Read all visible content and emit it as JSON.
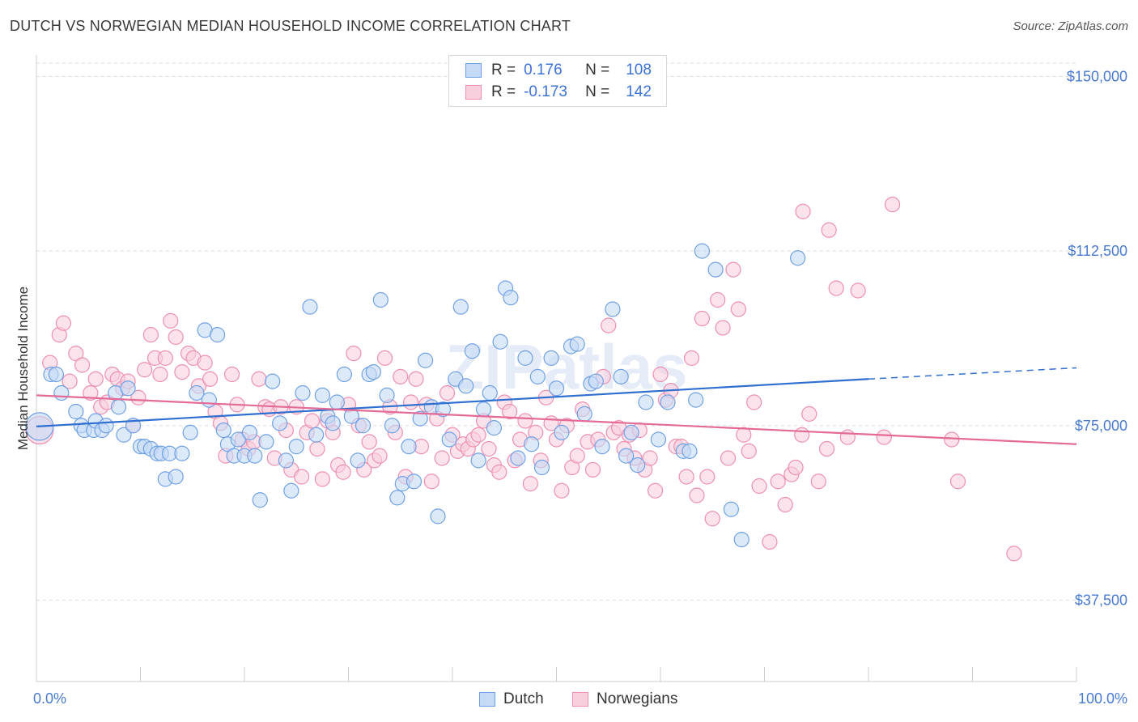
{
  "title": "DUTCH VS NORWEGIAN MEDIAN HOUSEHOLD INCOME CORRELATION CHART",
  "source": "Source: ZipAtlas.com",
  "watermark": "ZIPatlas",
  "colors": {
    "dutch": "#6fa0e6",
    "dutch_fill": "#c5daf5",
    "dutch_line": "#2f6fd0",
    "norwegian": "#ee8fb0",
    "norwegian_fill": "#f8cfdd",
    "norwegian_line": "#e36b96",
    "tick_label": "#4a7bd0",
    "grid": "#dddddd"
  },
  "legend": {
    "rows": [
      {
        "r_label": "R =",
        "r_value": "0.176",
        "n_label": "N =",
        "n_value": "108"
      },
      {
        "r_label": "R =",
        "r_value": "-0.173",
        "n_label": "N =",
        "n_value": "142"
      }
    ]
  },
  "bottom_legend": [
    "Dutch",
    "Norwegians"
  ],
  "chart_data": {
    "type": "scatter",
    "xlabel": "",
    "ylabel": "Median Household Income",
    "xlim": [
      0,
      100
    ],
    "ylim": [
      20000,
      156000
    ],
    "x_tick_labels": [
      "0.0%",
      "100.0%"
    ],
    "y_ticks": [
      37500,
      75000,
      112500,
      150000
    ],
    "y_tick_labels": [
      "$37,500",
      "$75,000",
      "$112,500",
      "$150,000"
    ],
    "grid": true,
    "legend_position": "top-center",
    "series": [
      {
        "name": "Dutch",
        "trend": {
          "x": [
            0,
            80,
            100
          ],
          "y": [
            74800,
            85000,
            87400
          ],
          "dashed_from": 80
        },
        "points": [
          [
            0.3,
            74800
          ],
          [
            1.4,
            86000
          ],
          [
            1.9,
            86000
          ],
          [
            2.4,
            82000
          ],
          [
            3.8,
            78000
          ],
          [
            4.3,
            75000
          ],
          [
            4.6,
            74000
          ],
          [
            5.5,
            74000
          ],
          [
            5.7,
            76000
          ],
          [
            6.3,
            74000
          ],
          [
            6.7,
            75000
          ],
          [
            7.6,
            82000
          ],
          [
            7.9,
            79000
          ],
          [
            8.4,
            73000
          ],
          [
            8.8,
            83000
          ],
          [
            9.3,
            75000
          ],
          [
            10.0,
            70500
          ],
          [
            10.4,
            70500
          ],
          [
            11.0,
            70000
          ],
          [
            11.6,
            69000
          ],
          [
            12.0,
            69000
          ],
          [
            12.4,
            63500
          ],
          [
            12.8,
            69000
          ],
          [
            13.4,
            64000
          ],
          [
            14.0,
            69000
          ],
          [
            14.8,
            73500
          ],
          [
            15.4,
            82000
          ],
          [
            16.2,
            95500
          ],
          [
            16.6,
            80500
          ],
          [
            17.4,
            94500
          ],
          [
            18.0,
            74000
          ],
          [
            18.4,
            71000
          ],
          [
            19.0,
            68500
          ],
          [
            19.4,
            72000
          ],
          [
            20.0,
            68500
          ],
          [
            20.5,
            73500
          ],
          [
            21.0,
            68500
          ],
          [
            21.5,
            59000
          ],
          [
            22.1,
            71500
          ],
          [
            22.7,
            84500
          ],
          [
            23.4,
            75500
          ],
          [
            24.0,
            67500
          ],
          [
            24.5,
            61000
          ],
          [
            25.0,
            70500
          ],
          [
            25.6,
            82000
          ],
          [
            26.3,
            100500
          ],
          [
            26.9,
            73000
          ],
          [
            27.5,
            81500
          ],
          [
            28.0,
            77000
          ],
          [
            28.5,
            75500
          ],
          [
            28.9,
            80000
          ],
          [
            29.6,
            86000
          ],
          [
            30.3,
            77000
          ],
          [
            30.9,
            67500
          ],
          [
            31.4,
            75000
          ],
          [
            32.0,
            86000
          ],
          [
            32.4,
            86500
          ],
          [
            33.1,
            102000
          ],
          [
            33.7,
            81500
          ],
          [
            34.2,
            75000
          ],
          [
            34.7,
            59500
          ],
          [
            35.2,
            62500
          ],
          [
            35.8,
            70500
          ],
          [
            36.3,
            63000
          ],
          [
            36.9,
            76500
          ],
          [
            37.4,
            89000
          ],
          [
            38.0,
            79000
          ],
          [
            38.6,
            55500
          ],
          [
            39.1,
            78500
          ],
          [
            39.7,
            72000
          ],
          [
            40.3,
            85000
          ],
          [
            40.8,
            100500
          ],
          [
            41.3,
            83500
          ],
          [
            41.9,
            91000
          ],
          [
            42.5,
            67500
          ],
          [
            43.0,
            78500
          ],
          [
            43.6,
            82000
          ],
          [
            44.0,
            74500
          ],
          [
            44.6,
            93000
          ],
          [
            45.1,
            104500
          ],
          [
            45.6,
            102500
          ],
          [
            46.3,
            68000
          ],
          [
            47.0,
            89500
          ],
          [
            47.6,
            71000
          ],
          [
            48.2,
            85500
          ],
          [
            48.6,
            66000
          ],
          [
            49.5,
            89500
          ],
          [
            50.0,
            83000
          ],
          [
            50.5,
            73500
          ],
          [
            51.4,
            92000
          ],
          [
            52.0,
            92500
          ],
          [
            52.7,
            77500
          ],
          [
            53.3,
            84000
          ],
          [
            53.8,
            84500
          ],
          [
            54.4,
            70500
          ],
          [
            55.4,
            100000
          ],
          [
            56.2,
            85500
          ],
          [
            56.7,
            68500
          ],
          [
            57.2,
            73500
          ],
          [
            57.8,
            66500
          ],
          [
            58.6,
            80000
          ],
          [
            59.8,
            72000
          ],
          [
            60.7,
            80000
          ],
          [
            62.2,
            69500
          ],
          [
            62.8,
            69500
          ],
          [
            63.4,
            80500
          ],
          [
            64.0,
            112500
          ],
          [
            65.3,
            108500
          ],
          [
            66.8,
            57000
          ],
          [
            67.8,
            50500
          ],
          [
            73.2,
            111000
          ]
        ]
      },
      {
        "name": "Norwegians",
        "trend": {
          "x": [
            0,
            100
          ],
          "y": [
            81500,
            71000
          ]
        },
        "points": [
          [
            0.3,
            74000
          ],
          [
            1.3,
            88500
          ],
          [
            2.2,
            94500
          ],
          [
            2.6,
            97000
          ],
          [
            3.2,
            84500
          ],
          [
            3.8,
            90500
          ],
          [
            4.4,
            88000
          ],
          [
            5.2,
            82000
          ],
          [
            5.7,
            85000
          ],
          [
            6.2,
            79000
          ],
          [
            6.8,
            80000
          ],
          [
            7.3,
            86000
          ],
          [
            7.8,
            85000
          ],
          [
            8.3,
            83000
          ],
          [
            8.8,
            84500
          ],
          [
            9.3,
            75000
          ],
          [
            9.8,
            81000
          ],
          [
            10.4,
            87000
          ],
          [
            11.0,
            94500
          ],
          [
            11.4,
            89500
          ],
          [
            11.9,
            86000
          ],
          [
            12.4,
            89500
          ],
          [
            12.9,
            97500
          ],
          [
            13.4,
            94000
          ],
          [
            14.0,
            86500
          ],
          [
            14.6,
            90500
          ],
          [
            15.1,
            89500
          ],
          [
            15.6,
            83500
          ],
          [
            16.2,
            88500
          ],
          [
            16.7,
            85000
          ],
          [
            17.2,
            78000
          ],
          [
            17.7,
            75500
          ],
          [
            18.2,
            68500
          ],
          [
            18.8,
            86000
          ],
          [
            19.3,
            79500
          ],
          [
            19.8,
            72000
          ],
          [
            20.4,
            70000
          ],
          [
            20.9,
            71500
          ],
          [
            21.4,
            85000
          ],
          [
            22.0,
            79000
          ],
          [
            22.4,
            78500
          ],
          [
            22.9,
            68000
          ],
          [
            23.5,
            79000
          ],
          [
            24.0,
            74000
          ],
          [
            24.5,
            65500
          ],
          [
            25.0,
            79000
          ],
          [
            25.5,
            64000
          ],
          [
            26.0,
            73500
          ],
          [
            26.5,
            76000
          ],
          [
            27.0,
            70000
          ],
          [
            27.5,
            63500
          ],
          [
            28.0,
            76000
          ],
          [
            28.5,
            73500
          ],
          [
            29.0,
            66500
          ],
          [
            29.5,
            65000
          ],
          [
            30.0,
            79500
          ],
          [
            30.5,
            90500
          ],
          [
            31.0,
            75000
          ],
          [
            31.5,
            65500
          ],
          [
            32.0,
            71500
          ],
          [
            32.5,
            67500
          ],
          [
            33.0,
            68500
          ],
          [
            33.5,
            89500
          ],
          [
            34.0,
            79000
          ],
          [
            34.5,
            73500
          ],
          [
            35.0,
            85500
          ],
          [
            35.5,
            64000
          ],
          [
            36.0,
            80000
          ],
          [
            36.5,
            85000
          ],
          [
            37.0,
            70500
          ],
          [
            37.5,
            79500
          ],
          [
            38.0,
            63000
          ],
          [
            38.5,
            76500
          ],
          [
            39.0,
            68000
          ],
          [
            39.5,
            82000
          ],
          [
            40.0,
            73000
          ],
          [
            40.5,
            69500
          ],
          [
            41.0,
            71000
          ],
          [
            41.5,
            70000
          ],
          [
            42.0,
            72000
          ],
          [
            42.5,
            73000
          ],
          [
            43.0,
            76000
          ],
          [
            43.5,
            70000
          ],
          [
            44.0,
            66500
          ],
          [
            44.5,
            65000
          ],
          [
            45.0,
            80000
          ],
          [
            45.5,
            78000
          ],
          [
            46.0,
            67500
          ],
          [
            46.5,
            72000
          ],
          [
            47.0,
            76000
          ],
          [
            47.5,
            62500
          ],
          [
            48.0,
            73500
          ],
          [
            48.5,
            67500
          ],
          [
            49.0,
            81000
          ],
          [
            49.5,
            75500
          ],
          [
            50.0,
            72000
          ],
          [
            50.5,
            61000
          ],
          [
            51.0,
            75000
          ],
          [
            51.5,
            66000
          ],
          [
            52.0,
            68500
          ],
          [
            52.5,
            78500
          ],
          [
            53.0,
            71500
          ],
          [
            53.5,
            65500
          ],
          [
            54.0,
            72000
          ],
          [
            54.5,
            85500
          ],
          [
            55.0,
            96500
          ],
          [
            55.5,
            73500
          ],
          [
            56.0,
            74500
          ],
          [
            56.5,
            70000
          ],
          [
            57.0,
            73000
          ],
          [
            57.5,
            68000
          ],
          [
            58.0,
            74000
          ],
          [
            58.5,
            65500
          ],
          [
            59.0,
            68000
          ],
          [
            59.5,
            61000
          ],
          [
            60.0,
            86000
          ],
          [
            60.5,
            80500
          ],
          [
            61.0,
            82500
          ],
          [
            61.5,
            70500
          ],
          [
            62.0,
            70500
          ],
          [
            62.5,
            64000
          ],
          [
            63.0,
            89500
          ],
          [
            63.5,
            60000
          ],
          [
            64.0,
            98000
          ],
          [
            64.5,
            64000
          ],
          [
            65.0,
            55000
          ],
          [
            65.5,
            102000
          ],
          [
            66.0,
            96000
          ],
          [
            66.5,
            68000
          ],
          [
            67.0,
            108500
          ],
          [
            67.5,
            100000
          ],
          [
            68.0,
            73000
          ],
          [
            68.5,
            69500
          ],
          [
            69.0,
            80000
          ],
          [
            69.5,
            62000
          ],
          [
            70.5,
            50000
          ],
          [
            71.3,
            63000
          ],
          [
            72.0,
            58000
          ],
          [
            72.6,
            64500
          ],
          [
            73.0,
            66000
          ],
          [
            73.6,
            73000
          ],
          [
            74.3,
            77500
          ],
          [
            75.2,
            63000
          ],
          [
            76.0,
            70000
          ],
          [
            76.9,
            104500
          ],
          [
            78.0,
            72500
          ],
          [
            79.0,
            104000
          ],
          [
            81.5,
            72500
          ],
          [
            82.3,
            122500
          ],
          [
            88.0,
            72000
          ],
          [
            88.6,
            63000
          ],
          [
            94.0,
            47500
          ],
          [
            73.7,
            121000
          ],
          [
            76.2,
            117000
          ]
        ]
      }
    ]
  }
}
